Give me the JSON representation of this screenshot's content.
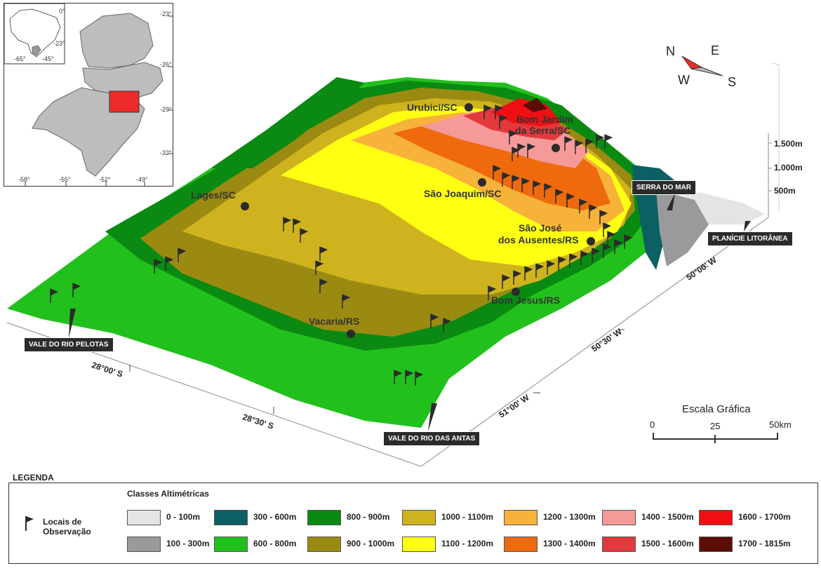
{
  "inset": {
    "brazil_labels": {
      "lon_w": "-65°",
      "lon_e": "-45°",
      "lat_top": "0°",
      "lat_bottom": "-23°"
    },
    "lat_labels": [
      "-23°",
      "-26°",
      "-29°",
      "-32°"
    ],
    "lon_labels": [
      "-58°",
      "-55°",
      "-52°",
      "-49°"
    ]
  },
  "cities": {
    "urubici": "Urubici/SC",
    "bom_jardim_1": "Bom Jardim",
    "bom_jardim_2": "da Serra/SC",
    "lages": "Lages/SC",
    "sao_joaquim": "São Joaquim/SC",
    "sao_jose_1": "São José",
    "sao_jose_2": "dos Ausentes/RS",
    "bom_jesus": "Bom Jesus/RS",
    "vacaria": "Vacaria/RS"
  },
  "callouts": {
    "serra_do_mar": "SERRA DO MAR",
    "planicie": "PLANÍCIE LITORÂNEA",
    "rio_pelotas": "VALE DO RIO PELOTAS",
    "rio_antas": "VALE DO RIO DAS ANTAS"
  },
  "coords": {
    "lat1": "28°00' S",
    "lat2": "28°30' S",
    "lon1": "50°00' W",
    "lon2": "50°30' W",
    "lon3": "51°00' W"
  },
  "elevation_axis": [
    "1.500m",
    "1.000m",
    "500m"
  ],
  "compass": {
    "n": "N",
    "e": "E",
    "w": "W",
    "s": "S"
  },
  "scale": {
    "title": "Escala Gráfica",
    "ticks": [
      "0",
      "25",
      "50km"
    ]
  },
  "legend": {
    "title": "LEGENDA",
    "classes_title": "Classes Altimétricas",
    "observation_1": "Locais de",
    "observation_2": "Observação",
    "classes": [
      {
        "label": "0 - 100m",
        "color": "#e4e4e6"
      },
      {
        "label": "100 - 300m",
        "color": "#9a9a9c"
      },
      {
        "label": "300 - 600m",
        "color": "#0c5f63"
      },
      {
        "label": "600 - 800m",
        "color": "#22c01c"
      },
      {
        "label": "800 - 900m",
        "color": "#0a8a12"
      },
      {
        "label": "900 - 1000m",
        "color": "#9b8a12"
      },
      {
        "label": "1000 - 1100m",
        "color": "#cfb31e"
      },
      {
        "label": "1100 - 1200m",
        "color": "#ffff14"
      },
      {
        "label": "1200 - 1300m",
        "color": "#f7b23a"
      },
      {
        "label": "1300 - 1400m",
        "color": "#ee6a0c"
      },
      {
        "label": "1400 - 1500m",
        "color": "#f59a98"
      },
      {
        "label": "1500 - 1600m",
        "color": "#e2393d"
      },
      {
        "label": "1600 - 1700m",
        "color": "#ee0f12"
      },
      {
        "label": "1700 - 1815m",
        "color": "#5c0d06"
      }
    ]
  }
}
